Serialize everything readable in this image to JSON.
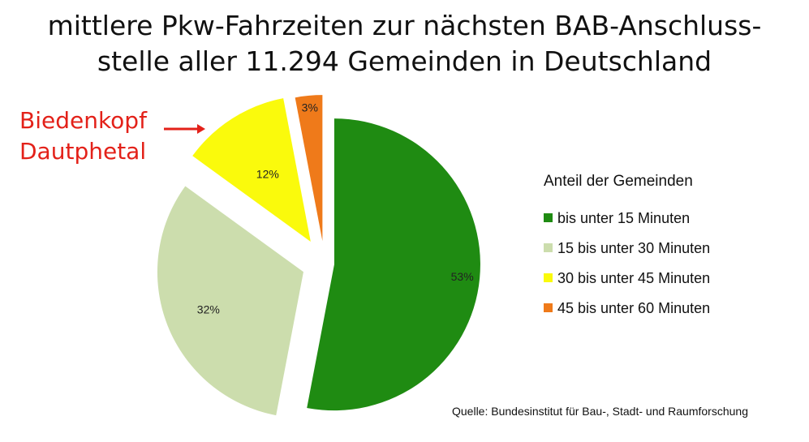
{
  "title_line1": "mittlere Pkw-Fahrzeiten zur nächsten BAB-Anschluss-",
  "title_line2": "stelle aller 11.294 Gemeinden in Deutschland",
  "annotation": {
    "line1": "Biedenkopf",
    "line2": "Dautphetal",
    "arrow": "arrow-right-icon",
    "color": "#e32119"
  },
  "chart_data": {
    "type": "pie",
    "title": "mittlere Pkw-Fahrzeiten zur nächsten BAB-Anschluss-stelle aller 11.294 Gemeinden in Deutschland",
    "legend_title": "Anteil der Gemeinden",
    "legend_position": "right",
    "slices": [
      {
        "label": "bis unter 15 Minuten",
        "value": 53,
        "display": "53%",
        "color": "#1f8b12"
      },
      {
        "label": "15 bis unter 30 Minuten",
        "value": 32,
        "display": "32%",
        "color": "#ccddad"
      },
      {
        "label": "30 bis unter 45 Minuten",
        "value": 12,
        "display": "12%",
        "color": "#fafa0c"
      },
      {
        "label": "45 bis unter 60 Minuten",
        "value": 3,
        "display": "3%",
        "color": "#ef7a1a"
      }
    ]
  },
  "source": "Quelle: Bundesinstitut für Bau-, Stadt- und Raumforschung"
}
